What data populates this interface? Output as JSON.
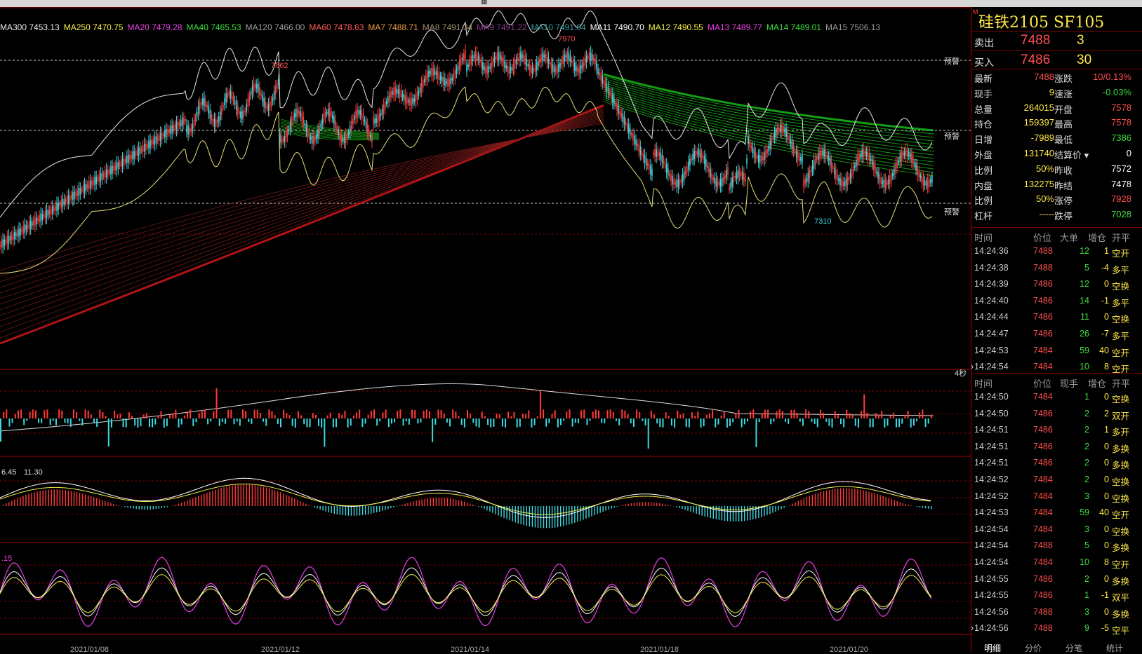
{
  "toolbar": {
    "glyph": "▦"
  },
  "ma_legend": [
    {
      "label": "MA300 7453.13",
      "color": "#e8e8e8"
    },
    {
      "label": "MA250 7470.75",
      "color": "#f3f04a"
    },
    {
      "label": "MA20 7479.28",
      "color": "#e640e6"
    },
    {
      "label": "MA40 7465.53",
      "color": "#3ddc3d"
    },
    {
      "label": "MA120 7466.00",
      "color": "#9a9a9a"
    },
    {
      "label": "MA60 7478.63",
      "color": "#ff5a5a"
    },
    {
      "label": "MA7 7488.71",
      "color": "#e89a3c"
    },
    {
      "label": "MA8 7491.34",
      "color": "#a08a6a"
    },
    {
      "label": "MA9 7491.22",
      "color": "#8a3a8a"
    },
    {
      "label": "MA10 7491.04",
      "color": "#3a9a9a"
    },
    {
      "label": "MA11 7490.70",
      "color": "#ffffff"
    },
    {
      "label": "MA12 7490.55",
      "color": "#f3f04a"
    },
    {
      "label": "MA13 7489.77",
      "color": "#e640e6"
    },
    {
      "label": "MA14 7489.01",
      "color": "#3ddc3d"
    },
    {
      "label": "MA15 7506.13",
      "color": "#9a9a9a"
    }
  ],
  "price_labels": {
    "high_1": "7862",
    "high_2": "7970",
    "low_1": "7310"
  },
  "warn_labels": {
    "w1": "预警",
    "w2": "预警",
    "w3": "预警"
  },
  "timer_label": "4秒",
  "macd_values": {
    "v1": "6.45",
    "v2": "11.30"
  },
  "osc_value": ".15",
  "date_labels": {
    "d1": "2021/01/08",
    "d2": "2021/01/12",
    "d3": "2021/01/14",
    "d4": "2021/01/18",
    "d5": "2021/01/20"
  },
  "symbol": {
    "title": "硅铁2105  SF105",
    "mark": "M"
  },
  "quote": {
    "ask_label": "卖出",
    "ask_price": "7488",
    "ask_vol": "3",
    "bid_label": "买入",
    "bid_price": "7486",
    "bid_vol": "30"
  },
  "stats": [
    {
      "l1": "最新",
      "v1": "7488",
      "c1": "#ff4d4d",
      "l2": "涨跌",
      "v2": "10/0.13%",
      "c2": "#ff4d4d"
    },
    {
      "l1": "现手",
      "v1": "9",
      "c1": "#ffe84a",
      "l2": "速涨",
      "v2": "-0.03%",
      "c2": "#3ddc3d"
    },
    {
      "l1": "总量",
      "v1": "264015",
      "c1": "#ffe84a",
      "l2": "开盘",
      "v2": "7578",
      "c2": "#ff4d4d"
    },
    {
      "l1": "持仓",
      "v1": "159397",
      "c1": "#ffe84a",
      "l2": "最高",
      "v2": "7578",
      "c2": "#ff4d4d"
    },
    {
      "l1": "日增",
      "v1": "-7989",
      "c1": "#ffe84a",
      "l2": "最低",
      "v2": "7386",
      "c2": "#3ddc3d"
    },
    {
      "l1": "外盘",
      "v1": "131740",
      "c1": "#ffe84a",
      "l2": "结算价",
      "v2": "0",
      "c2": "#ffffff"
    },
    {
      "l1": "比例",
      "v1": "50%",
      "c1": "#ffe84a",
      "l2": "昨收",
      "v2": "7572",
      "c2": "#ffffff"
    },
    {
      "l1": "内盘",
      "v1": "132275",
      "c1": "#ffe84a",
      "l2": "昨结",
      "v2": "7478",
      "c2": "#ffffff"
    },
    {
      "l1": "比例",
      "v1": "50%",
      "c1": "#ffe84a",
      "l2": "涨停",
      "v2": "7928",
      "c2": "#ff4d4d"
    },
    {
      "l1": "杠杆",
      "v1": "-----",
      "c1": "#ffe84a",
      "l2": "跌停",
      "v2": "7028",
      "c2": "#3ddc3d"
    }
  ],
  "big_orders": {
    "headers": [
      "时间",
      "价位",
      "大单",
      "增仓",
      "开平"
    ],
    "rows": [
      {
        "time": "14:24:36",
        "price": "7488",
        "vol": "12",
        "oi": "1",
        "type": "空开"
      },
      {
        "time": "14:24:38",
        "price": "7488",
        "vol": "5",
        "oi": "-4",
        "type": "多平"
      },
      {
        "time": "14:24:39",
        "price": "7486",
        "vol": "12",
        "oi": "0",
        "type": "空换"
      },
      {
        "time": "14:24:40",
        "price": "7486",
        "vol": "14",
        "oi": "-1",
        "type": "多平"
      },
      {
        "time": "14:24:44",
        "price": "7486",
        "vol": "11",
        "oi": "0",
        "type": "空换"
      },
      {
        "time": "14:24:47",
        "price": "7486",
        "vol": "26",
        "oi": "-7",
        "type": "多平"
      },
      {
        "time": "14:24:53",
        "price": "7484",
        "vol": "59",
        "oi": "40",
        "type": "空开"
      },
      {
        "time": "14:24:54",
        "price": "7484",
        "vol": "10",
        "oi": "8",
        "type": "空开"
      }
    ]
  },
  "ticks": {
    "headers": [
      "时间",
      "价位",
      "现手",
      "增仓",
      "开平"
    ],
    "rows": [
      {
        "time": "14:24:50",
        "price": "7484",
        "vol": "1",
        "oi": "0",
        "type": "空换"
      },
      {
        "time": "14:24:50",
        "price": "7486",
        "vol": "2",
        "oi": "2",
        "type": "双开"
      },
      {
        "time": "14:24:51",
        "price": "7486",
        "vol": "2",
        "oi": "1",
        "type": "多开"
      },
      {
        "time": "14:24:51",
        "price": "7486",
        "vol": "2",
        "oi": "0",
        "type": "多换"
      },
      {
        "time": "14:24:51",
        "price": "7486",
        "vol": "2",
        "oi": "0",
        "type": "多换"
      },
      {
        "time": "14:24:52",
        "price": "7484",
        "vol": "2",
        "oi": "0",
        "type": "空换"
      },
      {
        "time": "14:24:52",
        "price": "7484",
        "vol": "3",
        "oi": "0",
        "type": "空换"
      },
      {
        "time": "14:24:53",
        "price": "7484",
        "vol": "59",
        "oi": "40",
        "type": "空开"
      },
      {
        "time": "14:24:54",
        "price": "7484",
        "vol": "3",
        "oi": "0",
        "type": "空换"
      },
      {
        "time": "14:24:54",
        "price": "7488",
        "vol": "5",
        "oi": "0",
        "type": "多换"
      },
      {
        "time": "14:24:54",
        "price": "7484",
        "vol": "10",
        "oi": "8",
        "type": "空开"
      },
      {
        "time": "14:24:55",
        "price": "7486",
        "vol": "2",
        "oi": "0",
        "type": "多换"
      },
      {
        "time": "14:24:55",
        "price": "7486",
        "vol": "1",
        "oi": "-1",
        "type": "双平"
      },
      {
        "time": "14:24:56",
        "price": "7488",
        "vol": "3",
        "oi": "0",
        "type": "多换"
      },
      {
        "time": "14:24:56",
        "price": "7488",
        "vol": "9",
        "oi": "-5",
        "type": "空平"
      }
    ]
  },
  "bottom_tabs": [
    "明细",
    "分价",
    "分笔",
    "统计"
  ]
}
